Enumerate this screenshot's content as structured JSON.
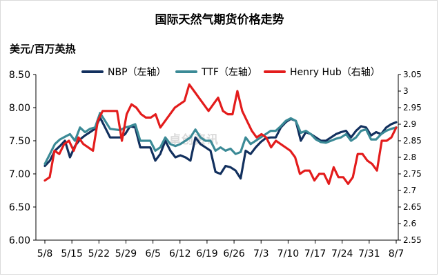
{
  "chart_data": {
    "type": "line",
    "title": "国际天然气期货价格走势",
    "ylabel": "美元/百万英热",
    "watermark": "卓创资讯",
    "x_ticks": [
      "5/8",
      "5/15",
      "5/22",
      "5/29",
      "6/5",
      "6/12",
      "6/19",
      "6/26",
      "7/3",
      "7/10",
      "7/17",
      "7/24",
      "7/31",
      "8/7"
    ],
    "ylim_left": [
      6.0,
      8.5
    ],
    "left_ticks": [
      "6.00",
      "6.50",
      "7.00",
      "7.50",
      "8.00",
      "8.50"
    ],
    "ylim_right": [
      2.55,
      3.05
    ],
    "right_ticks": [
      "2.55",
      "2.6",
      "2.65",
      "2.7",
      "2.75",
      "2.8",
      "2.85",
      "2.9",
      "2.95",
      "3",
      "3.05"
    ],
    "series": [
      {
        "name": "NBP（左轴）",
        "axis": "left",
        "color": "#12305e",
        "values": [
          7.12,
          7.2,
          7.35,
          7.42,
          7.5,
          7.25,
          7.42,
          7.52,
          7.58,
          7.63,
          7.68,
          7.85,
          7.7,
          7.55,
          7.55,
          7.55,
          7.6,
          7.72,
          7.7,
          7.4,
          7.4,
          7.4,
          7.2,
          7.3,
          7.5,
          7.35,
          7.25,
          7.28,
          7.25,
          7.2,
          7.55,
          7.45,
          7.4,
          7.35,
          7.03,
          7.0,
          7.12,
          7.1,
          7.05,
          6.93,
          7.35,
          7.3,
          7.4,
          7.48,
          7.54,
          7.55,
          7.55,
          7.7,
          7.78,
          7.83,
          7.8,
          7.5,
          7.63,
          7.6,
          7.55,
          7.5,
          7.5,
          7.55,
          7.6,
          7.63,
          7.65,
          7.55,
          7.65,
          7.72,
          7.7,
          7.58,
          7.63,
          7.6,
          7.7,
          7.75,
          7.78
        ]
      },
      {
        "name": "TTF（左轴）",
        "axis": "left",
        "color": "#3b8a96",
        "values": [
          7.15,
          7.3,
          7.45,
          7.52,
          7.56,
          7.6,
          7.5,
          7.7,
          7.63,
          7.68,
          7.7,
          7.92,
          7.8,
          7.68,
          7.67,
          7.66,
          7.7,
          7.72,
          7.75,
          7.5,
          7.5,
          7.5,
          7.35,
          7.4,
          7.55,
          7.45,
          7.42,
          7.45,
          7.5,
          7.55,
          7.67,
          7.55,
          7.5,
          7.5,
          7.35,
          7.4,
          7.35,
          7.38,
          7.3,
          7.33,
          7.55,
          7.45,
          7.5,
          7.55,
          7.6,
          7.65,
          7.65,
          7.72,
          7.8,
          7.84,
          7.8,
          7.62,
          7.65,
          7.6,
          7.52,
          7.48,
          7.47,
          7.5,
          7.53,
          7.55,
          7.6,
          7.5,
          7.55,
          7.65,
          7.67,
          7.52,
          7.52,
          7.6,
          7.65,
          7.68,
          7.7
        ]
      },
      {
        "name": "Henry Hub（右轴）",
        "axis": "right",
        "color": "#e31c1c",
        "values": [
          2.73,
          2.74,
          2.82,
          2.81,
          2.84,
          2.85,
          2.82,
          2.86,
          2.84,
          2.83,
          2.82,
          2.91,
          2.94,
          2.94,
          2.94,
          2.94,
          2.85,
          2.93,
          2.96,
          2.95,
          2.93,
          2.92,
          2.92,
          2.93,
          2.89,
          2.91,
          2.93,
          2.95,
          2.96,
          2.97,
          3.02,
          3.0,
          2.98,
          2.96,
          2.94,
          2.96,
          2.98,
          2.94,
          2.93,
          2.93,
          3.0,
          2.94,
          2.91,
          2.88,
          2.86,
          2.87,
          2.86,
          2.83,
          2.85,
          2.84,
          2.83,
          2.82,
          2.8,
          2.75,
          2.76,
          2.76,
          2.73,
          2.75,
          2.75,
          2.72,
          2.77,
          2.74,
          2.74,
          2.72,
          2.74,
          2.81,
          2.81,
          2.79,
          2.78,
          2.76,
          2.85,
          2.85,
          2.86,
          2.89
        ]
      }
    ],
    "grid": false,
    "legend_position": "top"
  }
}
